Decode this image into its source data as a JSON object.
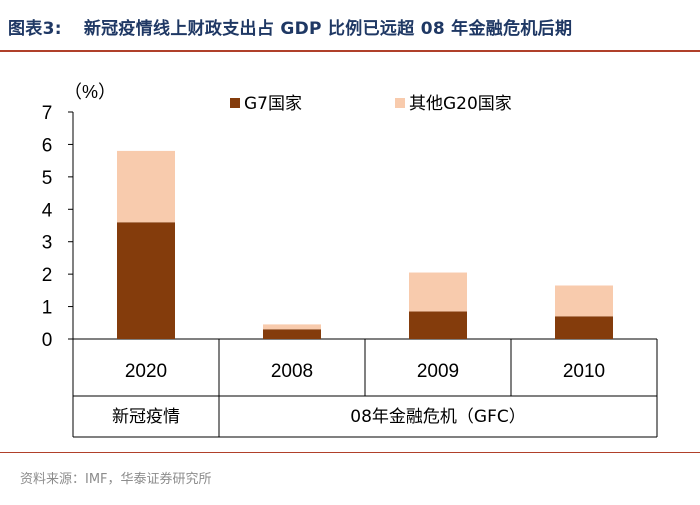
{
  "header": {
    "label": "图表3:",
    "title": "新冠疫情线上财政支出占 GDP 比例已远超 08 年金融危机后期"
  },
  "source": "资料来源：IMF，华泰证券研究所",
  "colors": {
    "g7": "#843c0c",
    "other_g20": "#f8cbad",
    "accent": "#b0402a",
    "title": "#1f3864"
  },
  "chart_data": {
    "type": "bar",
    "stacked": true,
    "unit_label": "（%）",
    "ylim": [
      0,
      7
    ],
    "yticks": [
      "0",
      "1",
      "2",
      "3",
      "4",
      "5",
      "6",
      "7"
    ],
    "categories": [
      "2020",
      "2008",
      "2009",
      "2010"
    ],
    "groups": [
      {
        "label": "新冠疫情",
        "span": 1
      },
      {
        "label": "08年金融危机（GFC）",
        "span": 3
      }
    ],
    "series": [
      {
        "name": "G7国家",
        "values": [
          3.6,
          0.3,
          0.85,
          0.7
        ]
      },
      {
        "name": "其他G20国家",
        "values": [
          2.2,
          0.15,
          1.2,
          0.95
        ]
      }
    ],
    "legend": "top"
  }
}
